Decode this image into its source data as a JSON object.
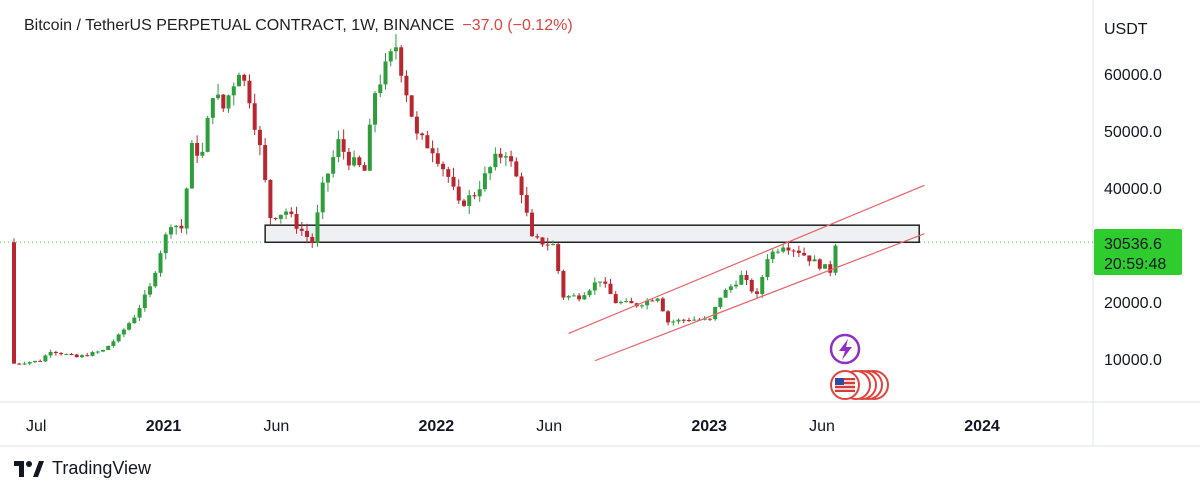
{
  "header": {
    "title": "Bitcoin / TetherUS PERPETUAL CONTRACT, 1W, BINANCE",
    "change": "−37.0 (−0.12%)"
  },
  "price_axis": {
    "currency": "USDT"
  },
  "price_tag": {
    "price": "30536.6",
    "countdown": "20:59:48"
  },
  "brand": {
    "name": "TradingView"
  },
  "colors": {
    "up": "#26a69a",
    "down": "#e0443f",
    "candle_up": "#2e9e3d",
    "candle_down": "#b8272f",
    "channel": "#e8636a",
    "tag": "#2ecc2e",
    "zone_fill": "#eef0f4"
  },
  "chart_data": {
    "type": "candlestick",
    "title": "Bitcoin / TetherUS PERPETUAL CONTRACT, 1W, BINANCE",
    "ylabel": "USDT",
    "ylim": [
      0,
      70000
    ],
    "y_ticks": [
      10000,
      20000,
      30000,
      40000,
      50000,
      60000
    ],
    "y_tick_labels": [
      "10000.0",
      "20000.0",
      "30000.0",
      "40000.0",
      "50000.0",
      "60000.0"
    ],
    "x_ticks": [
      "Jul",
      "2021",
      "Jun",
      "2022",
      "Jun",
      "2023",
      "Jun",
      "2024"
    ],
    "x_tick_dates": [
      "2020-07-01",
      "2021-01-01",
      "2021-06-01",
      "2022-01-01",
      "2022-06-01",
      "2023-01-01",
      "2023-06-01",
      "2024-01-01"
    ],
    "last_price": 30536.6,
    "close_path": [
      [
        "2020-06-15",
        9200
      ],
      [
        "2020-07-20",
        9700
      ],
      [
        "2020-08-03",
        11500
      ],
      [
        "2020-09-07",
        10300
      ],
      [
        "2020-10-12",
        11500
      ],
      [
        "2020-11-02",
        14000
      ],
      [
        "2020-11-23",
        17500
      ],
      [
        "2020-12-14",
        22500
      ],
      [
        "2020-12-28",
        29000
      ],
      [
        "2021-01-11",
        34000
      ],
      [
        "2021-01-25",
        33000
      ],
      [
        "2021-02-08",
        47000
      ],
      [
        "2021-02-22",
        46000
      ],
      [
        "2021-03-08",
        57000
      ],
      [
        "2021-03-22",
        54000
      ],
      [
        "2021-04-12",
        61000
      ],
      [
        "2021-04-26",
        56000
      ],
      [
        "2021-05-10",
        47000
      ],
      [
        "2021-05-24",
        35000
      ],
      [
        "2021-06-14",
        36000
      ],
      [
        "2021-06-28",
        33500
      ],
      [
        "2021-07-19",
        30500
      ],
      [
        "2021-08-02",
        40000
      ],
      [
        "2021-08-23",
        48000
      ],
      [
        "2021-09-06",
        45000
      ],
      [
        "2021-09-27",
        43000
      ],
      [
        "2021-10-11",
        57000
      ],
      [
        "2021-10-25",
        61000
      ],
      [
        "2021-11-08",
        65000
      ],
      [
        "2021-11-22",
        57000
      ],
      [
        "2021-12-06",
        49000
      ],
      [
        "2021-12-27",
        47000
      ],
      [
        "2022-01-17",
        42000
      ],
      [
        "2022-01-31",
        37000
      ],
      [
        "2022-02-21",
        39000
      ],
      [
        "2022-03-21",
        45000
      ],
      [
        "2022-04-04",
        46500
      ],
      [
        "2022-04-25",
        39500
      ],
      [
        "2022-05-09",
        31000
      ],
      [
        "2022-06-06",
        30000
      ],
      [
        "2022-06-20",
        21000
      ],
      [
        "2022-07-11",
        21000
      ],
      [
        "2022-08-08",
        24000
      ],
      [
        "2022-08-29",
        20000
      ],
      [
        "2022-09-26",
        19500
      ],
      [
        "2022-10-24",
        21000
      ],
      [
        "2022-11-07",
        16500
      ],
      [
        "2022-12-05",
        17000
      ],
      [
        "2023-01-02",
        16800
      ],
      [
        "2023-01-16",
        21000
      ],
      [
        "2023-02-13",
        24500
      ],
      [
        "2023-03-06",
        21000
      ],
      [
        "2023-03-20",
        28000
      ],
      [
        "2023-04-10",
        30200
      ],
      [
        "2023-05-01",
        29000
      ],
      [
        "2023-05-22",
        27000
      ],
      [
        "2023-06-12",
        25500
      ],
      [
        "2023-06-19",
        30500
      ]
    ],
    "zone": {
      "from": "2021-05-17",
      "to": "2023-10-09",
      "low": 30500,
      "high": 33500
    },
    "channel": {
      "upper": [
        [
          "2022-06-27",
          14500
        ],
        [
          "2023-10-16",
          40500
        ]
      ],
      "lower": [
        [
          "2022-08-01",
          9700
        ],
        [
          "2023-10-16",
          32000
        ]
      ]
    },
    "current_price_line": 30536.6
  }
}
